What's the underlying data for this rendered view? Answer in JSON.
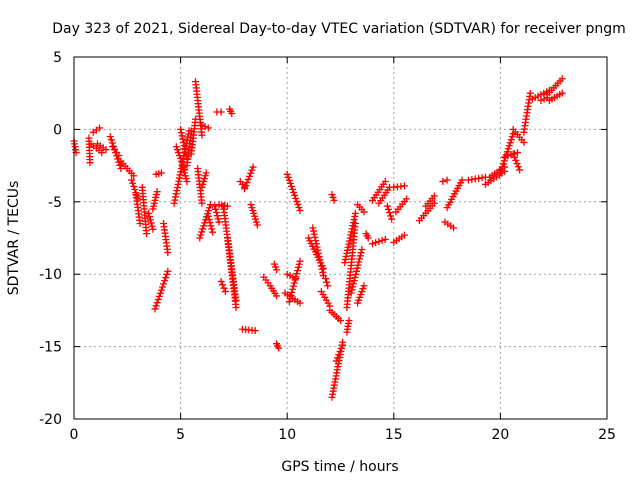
{
  "chart_data": {
    "type": "scatter",
    "title": "Day 323 of 2021, Sidereal Day-to-day VTEC variation (SDTVAR) for receiver pngm",
    "xlabel": "GPS time / hours",
    "ylabel": "SDTVAR / TECUs",
    "xlim": [
      0,
      25
    ],
    "ylim": [
      -20,
      5
    ],
    "xticks": [
      "0",
      "5",
      "10",
      "15",
      "20",
      "25"
    ],
    "yticks": [
      "5",
      "0",
      "-5",
      "-10",
      "-15",
      "-20"
    ],
    "grid": true,
    "marker": "plus",
    "color": "#ff0000",
    "segments": [
      [
        0.0,
        -0.8,
        0.1,
        -1.6
      ],
      [
        0.7,
        -0.6,
        0.75,
        -2.3
      ],
      [
        0.9,
        -0.2,
        1.2,
        0.1
      ],
      [
        0.8,
        -1.0,
        1.3,
        -1.6
      ],
      [
        1.1,
        -1.0,
        1.5,
        -1.4
      ],
      [
        1.7,
        -0.5,
        2.2,
        -2.7
      ],
      [
        1.8,
        -1.2,
        2.1,
        -1.8
      ],
      [
        2.2,
        -2.2,
        2.8,
        -3.2
      ],
      [
        2.7,
        -3.5,
        3.0,
        -4.8
      ],
      [
        2.9,
        -4.5,
        3.1,
        -6.5
      ],
      [
        3.2,
        -4.0,
        3.4,
        -7.2
      ],
      [
        3.5,
        -5.8,
        3.7,
        -6.9
      ],
      [
        3.7,
        -5.5,
        3.9,
        -4.3
      ],
      [
        3.85,
        -3.1,
        4.1,
        -3.0
      ],
      [
        3.8,
        -12.4,
        4.4,
        -9.8
      ],
      [
        4.2,
        -6.5,
        4.4,
        -8.5
      ],
      [
        4.7,
        -5.1,
        5.4,
        -0.1
      ],
      [
        4.8,
        -1.2,
        5.2,
        -2.8
      ],
      [
        5.0,
        0.0,
        5.3,
        -2.0
      ],
      [
        5.3,
        -2.5,
        5.5,
        -0.1
      ],
      [
        5.1,
        -2.6,
        5.3,
        -3.6
      ],
      [
        5.5,
        -1.7,
        5.7,
        0.7
      ],
      [
        5.7,
        3.3,
        6.0,
        -0.4
      ],
      [
        6.0,
        0.3,
        6.3,
        0.1
      ],
      [
        5.8,
        -2.7,
        6.0,
        -5.1
      ],
      [
        6.0,
        -4.0,
        6.2,
        -3.0
      ],
      [
        5.9,
        -7.5,
        6.4,
        -5.2
      ],
      [
        6.3,
        -6.0,
        6.5,
        -7.1
      ],
      [
        6.6,
        -5.3,
        6.8,
        -6.4
      ],
      [
        6.8,
        -5.2,
        7.2,
        -5.3
      ],
      [
        7.0,
        -5.3,
        7.6,
        -11.8
      ],
      [
        7.2,
        -7.5,
        7.6,
        -12.3
      ],
      [
        6.9,
        -10.5,
        7.1,
        -11.2
      ],
      [
        6.7,
        1.2,
        6.9,
        1.2
      ],
      [
        7.3,
        1.4,
        7.4,
        1.1
      ],
      [
        7.8,
        -3.6,
        8.0,
        -4.0
      ],
      [
        8.0,
        -4.1,
        8.4,
        -2.6
      ],
      [
        8.3,
        -5.2,
        8.6,
        -6.6
      ],
      [
        7.9,
        -13.8,
        8.5,
        -13.9
      ],
      [
        8.9,
        -10.2,
        9.1,
        -10.6
      ],
      [
        9.2,
        -10.8,
        9.5,
        -11.5
      ],
      [
        9.4,
        -9.3,
        9.5,
        -9.7
      ],
      [
        9.5,
        -14.8,
        9.6,
        -15.1
      ],
      [
        10.0,
        -3.1,
        10.6,
        -5.6
      ],
      [
        9.9,
        -11.3,
        10.6,
        -12.0
      ],
      [
        10.1,
        -11.9,
        10.6,
        -9.1
      ],
      [
        10.0,
        -10.0,
        10.4,
        -10.3
      ],
      [
        11.0,
        -7.5,
        11.7,
        -9.6
      ],
      [
        11.2,
        -6.8,
        11.7,
        -10.1
      ],
      [
        11.6,
        -11.2,
        12.0,
        -12.2
      ],
      [
        12.0,
        -12.5,
        12.5,
        -13.2
      ],
      [
        11.8,
        -10.3,
        11.9,
        -10.8
      ],
      [
        12.1,
        -4.5,
        12.2,
        -4.9
      ],
      [
        12.1,
        -18.5,
        12.6,
        -14.7
      ],
      [
        12.3,
        -16.0,
        12.6,
        -14.9
      ],
      [
        12.7,
        -9.2,
        13.2,
        -5.8
      ],
      [
        12.8,
        -12.3,
        13.2,
        -6.5
      ],
      [
        12.8,
        -14.0,
        12.9,
        -13.2
      ],
      [
        13.0,
        -11.3,
        13.5,
        -8.3
      ],
      [
        13.3,
        -5.2,
        13.6,
        -5.7
      ],
      [
        13.3,
        -12.0,
        13.6,
        -10.8
      ],
      [
        13.7,
        -7.2,
        13.8,
        -7.5
      ],
      [
        14.0,
        -4.9,
        14.6,
        -3.6
      ],
      [
        14.3,
        -5.1,
        14.8,
        -4.0
      ],
      [
        14.7,
        -5.3,
        14.9,
        -6.2
      ],
      [
        14.0,
        -7.9,
        14.6,
        -7.6
      ],
      [
        15.0,
        -7.8,
        15.5,
        -7.3
      ],
      [
        15.0,
        -4.0,
        15.5,
        -3.9
      ],
      [
        15.1,
        -5.7,
        15.6,
        -4.8
      ],
      [
        16.2,
        -6.3,
        16.9,
        -5.1
      ],
      [
        16.5,
        -5.3,
        16.9,
        -4.6
      ],
      [
        17.3,
        -3.6,
        17.5,
        -3.5
      ],
      [
        17.5,
        -5.4,
        18.2,
        -3.5
      ],
      [
        17.4,
        -6.4,
        17.8,
        -6.8
      ],
      [
        18.5,
        -3.5,
        19.3,
        -3.3
      ],
      [
        19.3,
        -3.8,
        20.2,
        -2.9
      ],
      [
        19.5,
        -3.3,
        20.2,
        -2.6
      ],
      [
        20.0,
        -3.0,
        20.6,
        -0.3
      ],
      [
        20.2,
        -1.9,
        20.8,
        -1.6
      ],
      [
        20.6,
        0.0,
        21.1,
        -0.9
      ],
      [
        20.6,
        -1.7,
        20.9,
        -2.8
      ],
      [
        21.1,
        -0.2,
        21.4,
        2.5
      ],
      [
        21.5,
        2.1,
        22.3,
        2.7
      ],
      [
        21.9,
        2.0,
        22.2,
        2.2
      ],
      [
        22.2,
        2.4,
        22.9,
        3.5
      ],
      [
        22.3,
        2.0,
        22.9,
        2.5
      ]
    ]
  }
}
